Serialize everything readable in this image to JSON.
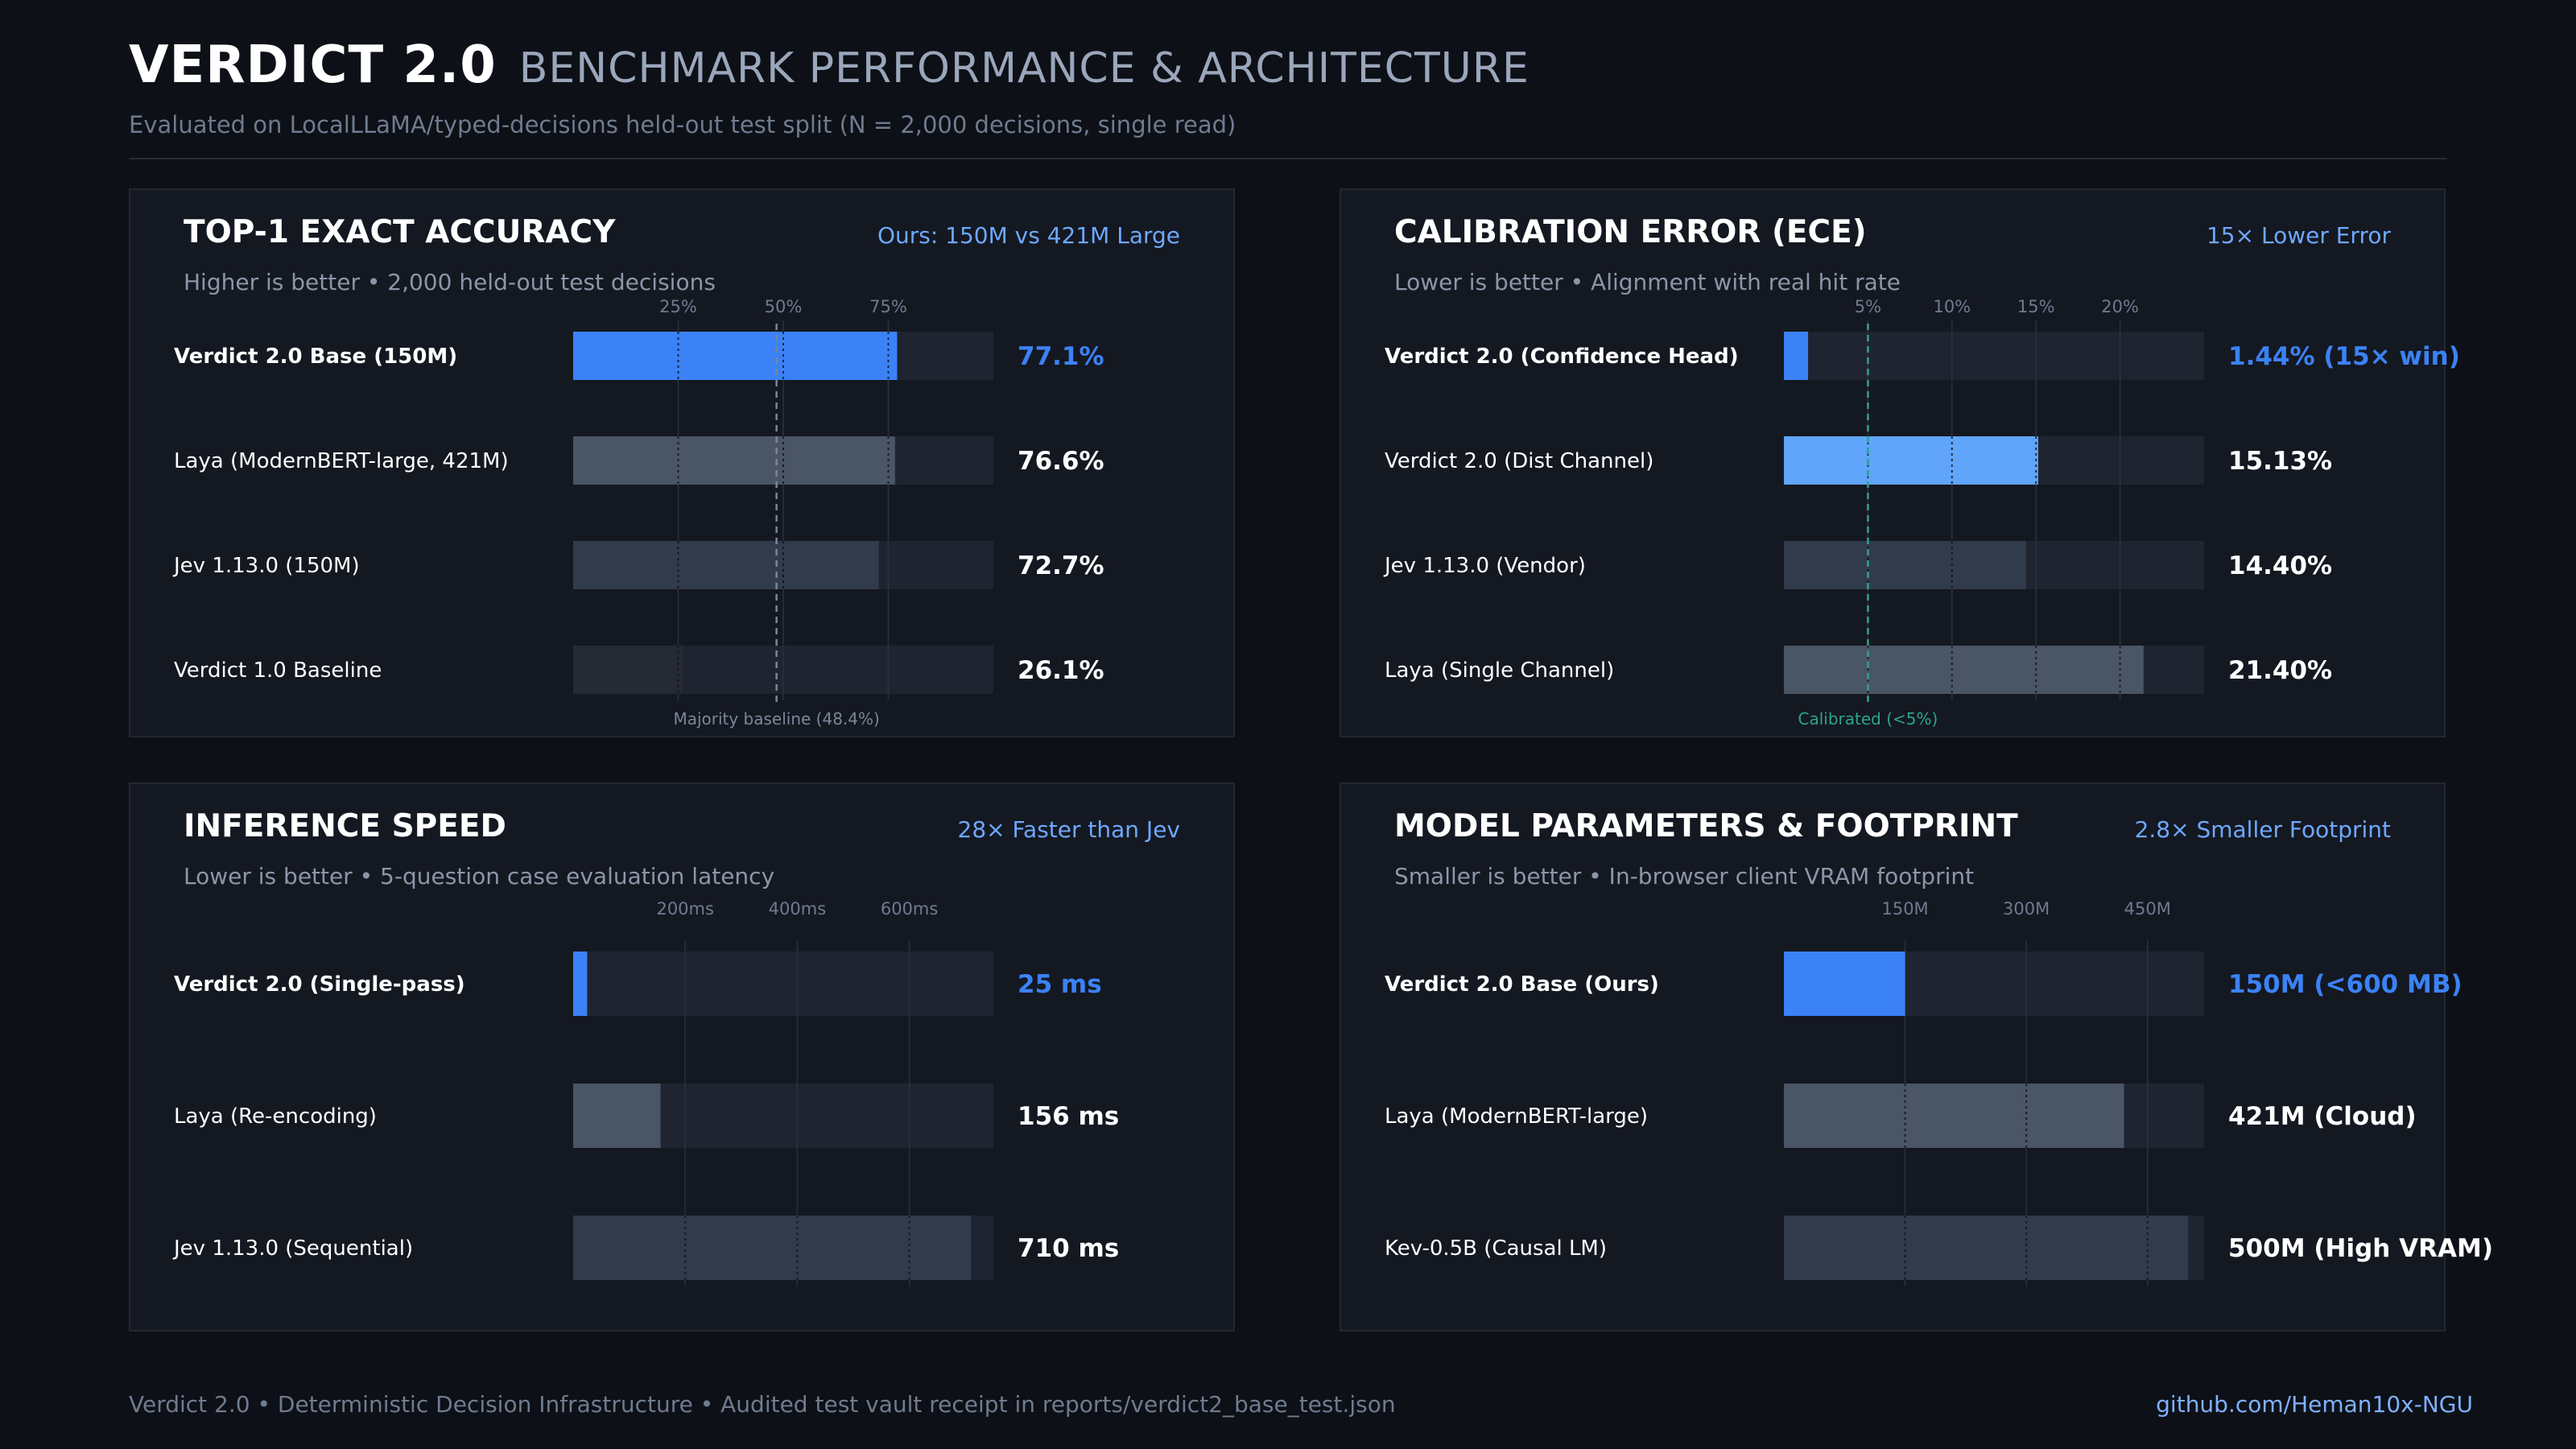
{
  "header": {
    "title": "VERDICT 2.0",
    "subtitle_title": "BENCHMARK PERFORMANCE & ARCHITECTURE",
    "description": "Evaluated on LocalLLaMA/typed-decisions held-out test split (N = 2,000 decisions, single read)"
  },
  "footer": {
    "left": "Verdict 2.0 • Deterministic Decision Infrastructure • Audited test vault receipt in reports/verdict2_base_test.json",
    "right": "github.com/Heman10x-NGU"
  },
  "colors": {
    "background": "#0d1016",
    "panel": "#141821",
    "track": "#1f2430",
    "accent": "#3b82f6",
    "accent_light": "#60a5fa",
    "grey_bar": "#4a5565",
    "dark_bar": "#313b4c",
    "calibrated_line": "#2aa58b"
  },
  "chart_data": [
    {
      "type": "bar",
      "orientation": "horizontal",
      "title": "TOP-1 EXACT ACCURACY",
      "badge": "Ours: 150M vs 421M Large",
      "subtitle": "Higher is better • 2,000 held-out test decisions",
      "xlim": [
        0,
        100
      ],
      "ticks": [
        25,
        50,
        75
      ],
      "tick_labels": [
        "25%",
        "50%",
        "75%"
      ],
      "categories": [
        "Verdict 2.0 Base (150M)",
        "Laya (ModernBERT-large, 421M)",
        "Jev 1.13.0 (150M)",
        "Verdict 1.0 Baseline"
      ],
      "values": [
        77.1,
        76.6,
        72.7,
        26.1
      ],
      "value_labels": [
        "77.1%",
        "76.6%",
        "72.7%",
        "26.1%"
      ],
      "highlight": [
        true,
        false,
        false,
        false
      ],
      "bar_colors": [
        "#3b82f6",
        "#4a5565",
        "#313b4c",
        "#252a35"
      ],
      "reference": {
        "value": 48.4,
        "label": "Majority baseline (48.4%)",
        "color": "#7c8699"
      }
    },
    {
      "type": "bar",
      "orientation": "horizontal",
      "title": "CALIBRATION ERROR (ECE)",
      "badge": "15× Lower Error",
      "subtitle": "Lower is better • Alignment with real hit rate",
      "xlim": [
        0,
        25
      ],
      "ticks": [
        5,
        10,
        15,
        20
      ],
      "tick_labels": [
        "5%",
        "10%",
        "15%",
        "20%"
      ],
      "categories": [
        "Verdict 2.0 (Confidence Head)",
        "Verdict 2.0 (Dist Channel)",
        "Jev 1.13.0 (Vendor)",
        "Laya (Single Channel)"
      ],
      "values": [
        1.44,
        15.13,
        14.4,
        21.4
      ],
      "value_labels": [
        "1.44%  (15× win)",
        "15.13%",
        "14.40%",
        "21.40%"
      ],
      "highlight": [
        true,
        false,
        false,
        false
      ],
      "bar_colors": [
        "#3b82f6",
        "#60a5fa",
        "#313b4c",
        "#4a5565"
      ],
      "reference": {
        "value": 5,
        "label": "Calibrated (<5%)",
        "color": "#2aa58b"
      }
    },
    {
      "type": "bar",
      "orientation": "horizontal",
      "title": "INFERENCE SPEED",
      "badge": "28× Faster than Jev",
      "subtitle": "Lower is better • 5-question case evaluation latency",
      "xlim": [
        0,
        750
      ],
      "ticks": [
        200,
        400,
        600
      ],
      "tick_labels": [
        "200ms",
        "400ms",
        "600ms"
      ],
      "categories": [
        "Verdict 2.0 (Single-pass)",
        "Laya (Re-encoding)",
        "Jev 1.13.0 (Sequential)"
      ],
      "values": [
        25,
        156,
        710
      ],
      "value_labels": [
        "25 ms",
        "156 ms",
        "710 ms"
      ],
      "highlight": [
        true,
        false,
        false
      ],
      "bar_colors": [
        "#3b82f6",
        "#4a5565",
        "#313b4c"
      ]
    },
    {
      "type": "bar",
      "orientation": "horizontal",
      "title": "MODEL PARAMETERS & FOOTPRINT",
      "badge": "2.8× Smaller Footprint",
      "subtitle": "Smaller is better • In-browser client VRAM footprint",
      "xlim": [
        0,
        520
      ],
      "ticks": [
        150,
        300,
        450
      ],
      "tick_labels": [
        "150M",
        "300M",
        "450M"
      ],
      "categories": [
        "Verdict 2.0 Base (Ours)",
        "Laya (ModernBERT-large)",
        "Kev-0.5B (Causal LM)"
      ],
      "values": [
        150,
        421,
        500
      ],
      "value_labels": [
        "150M (<600 MB)",
        "421M (Cloud)",
        "500M (High VRAM)"
      ],
      "highlight": [
        true,
        false,
        false
      ],
      "bar_colors": [
        "#3b82f6",
        "#4a5565",
        "#313b4c"
      ]
    }
  ]
}
